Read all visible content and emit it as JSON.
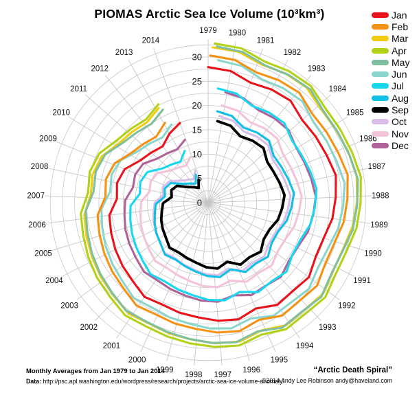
{
  "header": {
    "title": "PIOMAS Arctic Sea Ice Volume (10³km³)"
  },
  "footer": {
    "left_line1": "Monthly Averages from Jan 1979 to Jan 2014",
    "data_label": "Data:",
    "data_url": "http://psc.apl.washington.edu/wordpress/research/projects/arctic-sea-ice-volume-anomaly/",
    "right_title": "“Arctic Death Spiral”",
    "right_copyright": "©2014 Andy Lee Robinson andy@haveland.com"
  },
  "chart_data": {
    "type": "line",
    "polar": true,
    "title": "PIOMAS Arctic Sea Ice Volume (10³km³)",
    "units": "10³km³",
    "start_year": 1979,
    "end_year": 2014,
    "full_circle_years": 37,
    "clockwise": true,
    "year_labels": [
      1979,
      1980,
      1981,
      1982,
      1983,
      1984,
      1985,
      1986,
      1987,
      1988,
      1989,
      1990,
      1991,
      1992,
      1993,
      1994,
      1995,
      1996,
      1997,
      1998,
      1999,
      2000,
      2001,
      2002,
      2003,
      2004,
      2005,
      2006,
      2007,
      2008,
      2009,
      2010,
      2011,
      2012,
      2013,
      2014
    ],
    "radial_ticks": [
      0,
      5,
      10,
      15,
      20,
      25,
      30
    ],
    "ring_step": 2.5,
    "rmax": 32.5,
    "grid_color": "#c6c6c6",
    "legend_position": "right",
    "series": [
      {
        "name": "Jan",
        "color": "#e8131b",
        "width": 3.1,
        "values": [
          27.9,
          27.5,
          26.2,
          26.7,
          27.0,
          25.8,
          26.0,
          26.3,
          26.9,
          26.3,
          25.8,
          24.9,
          24.8,
          25.8,
          25.2,
          25.4,
          23.9,
          24.8,
          24.4,
          23.7,
          23.4,
          23.0,
          23.4,
          22.4,
          21.9,
          21.4,
          20.9,
          20.5,
          18.8,
          19.2,
          18.5,
          16.5,
          15.6,
          14.9,
          16.3,
          17.4
        ]
      },
      {
        "name": "Feb",
        "color": "#f59115",
        "width": 3.1,
        "values": [
          30.3,
          29.9,
          28.6,
          29.1,
          29.4,
          28.2,
          28.4,
          28.7,
          29.3,
          28.7,
          28.2,
          27.3,
          27.2,
          28.2,
          27.6,
          27.8,
          26.3,
          27.2,
          26.8,
          26.1,
          25.8,
          25.4,
          25.8,
          24.8,
          24.3,
          23.8,
          23.3,
          22.9,
          21.2,
          21.6,
          20.9,
          18.9,
          18.0,
          17.3,
          18.7
        ]
      },
      {
        "name": "Mar",
        "color": "#f2cb13",
        "width": 3.1,
        "values": [
          32.0,
          31.7,
          30.5,
          31.0,
          31.2,
          30.2,
          30.3,
          30.7,
          31.1,
          30.7,
          30.2,
          29.4,
          29.3,
          30.2,
          29.7,
          29.9,
          28.5,
          29.3,
          29.0,
          28.4,
          28.1,
          27.7,
          28.1,
          27.3,
          26.9,
          26.4,
          26.0,
          25.6,
          24.2,
          24.5,
          23.9,
          22.1,
          21.4,
          20.8,
          22.0
        ]
      },
      {
        "name": "Apr",
        "color": "#b2d118",
        "width": 3.1,
        "values": [
          32.8,
          32.5,
          31.3,
          31.8,
          32.0,
          31.0,
          31.1,
          31.4,
          31.9,
          31.4,
          31.0,
          30.2,
          30.1,
          31.0,
          30.4,
          30.6,
          29.3,
          30.1,
          29.7,
          29.2,
          28.8,
          28.5,
          28.8,
          28.0,
          27.6,
          27.1,
          26.6,
          26.3,
          24.8,
          25.2,
          24.6,
          22.8,
          22.0,
          21.4,
          22.7
        ]
      },
      {
        "name": "May",
        "color": "#7fbf9e",
        "width": 3.1,
        "values": [
          32.2,
          31.8,
          30.6,
          31.1,
          31.4,
          30.3,
          30.4,
          30.7,
          31.2,
          30.7,
          30.3,
          29.4,
          29.3,
          30.3,
          29.6,
          29.9,
          28.4,
          29.3,
          28.9,
          28.3,
          27.9,
          27.6,
          27.9,
          27.1,
          26.6,
          26.1,
          25.6,
          25.3,
          23.7,
          24.0,
          23.4,
          21.5,
          20.6,
          20.0,
          21.3
        ]
      },
      {
        "name": "Jun",
        "color": "#8ad6cd",
        "width": 3.1,
        "values": [
          29.4,
          29.0,
          27.7,
          28.2,
          28.5,
          27.3,
          27.5,
          27.8,
          28.4,
          27.8,
          27.3,
          26.4,
          26.3,
          27.3,
          26.7,
          26.9,
          25.4,
          26.3,
          25.9,
          25.2,
          24.9,
          24.5,
          24.9,
          23.9,
          23.4,
          22.9,
          22.4,
          22.0,
          20.3,
          20.7,
          20.0,
          18.0,
          17.1,
          16.4,
          17.8
        ]
      },
      {
        "name": "Jul",
        "color": "#19d7ef",
        "width": 3.1,
        "values": [
          23.6,
          23.2,
          21.9,
          22.4,
          22.7,
          21.5,
          21.6,
          22.0,
          22.5,
          22.0,
          21.5,
          20.5,
          20.4,
          21.5,
          20.8,
          21.1,
          19.5,
          20.4,
          20.0,
          19.3,
          18.9,
          18.5,
          18.9,
          18.0,
          17.4,
          16.9,
          16.4,
          16.0,
          14.2,
          14.6,
          14.0,
          11.8,
          10.9,
          10.2,
          11.7
        ]
      },
      {
        "name": "Aug",
        "color": "#13bfe4",
        "width": 3.1,
        "values": [
          18.9,
          18.5,
          17.1,
          17.6,
          17.9,
          16.6,
          16.8,
          17.2,
          17.8,
          17.2,
          16.6,
          15.6,
          15.5,
          16.6,
          15.9,
          16.2,
          14.5,
          15.5,
          15.1,
          14.4,
          13.9,
          13.5,
          13.9,
          12.9,
          12.4,
          11.8,
          11.2,
          10.8,
          9.0,
          9.4,
          8.7,
          6.4,
          5.4,
          4.7,
          6.3
        ]
      },
      {
        "name": "Sep",
        "color": "#000000",
        "width": 3.8,
        "values": [
          16.9,
          16.5,
          15.2,
          15.7,
          16.0,
          14.8,
          14.9,
          15.3,
          15.8,
          15.3,
          14.8,
          13.8,
          13.7,
          14.8,
          14.1,
          14.4,
          12.8,
          13.7,
          13.3,
          12.6,
          12.2,
          11.9,
          12.2,
          11.3,
          10.8,
          10.3,
          9.7,
          9.3,
          7.6,
          8.0,
          7.3,
          5.2,
          4.3,
          3.6,
          5.1
        ]
      },
      {
        "name": "Oct",
        "color": "#d9bfe8",
        "width": 3.1,
        "values": [
          18.0,
          17.6,
          16.4,
          16.9,
          17.1,
          16.0,
          16.2,
          16.5,
          17.0,
          16.5,
          16.0,
          15.2,
          15.1,
          16.0,
          15.4,
          15.7,
          14.2,
          15.1,
          14.7,
          14.1,
          13.7,
          13.3,
          13.7,
          12.8,
          12.3,
          11.9,
          11.4,
          11.0,
          9.4,
          9.8,
          9.1,
          7.2,
          6.3,
          5.7,
          7.1
        ]
      },
      {
        "name": "Nov",
        "color": "#f4c3da",
        "width": 3.1,
        "values": [
          20.2,
          19.9,
          18.7,
          19.2,
          19.4,
          18.4,
          18.5,
          18.8,
          19.3,
          18.8,
          18.4,
          17.6,
          17.5,
          18.4,
          17.8,
          18.1,
          16.7,
          17.5,
          17.2,
          16.6,
          16.2,
          15.9,
          16.2,
          15.5,
          15.0,
          14.6,
          14.1,
          13.8,
          12.3,
          12.6,
          12.1,
          10.3,
          9.5,
          8.9,
          10.1
        ]
      },
      {
        "name": "Dec",
        "color": "#b06398",
        "width": 3.1,
        "values": [
          23.0,
          22.7,
          21.7,
          22.1,
          22.3,
          21.4,
          21.5,
          21.8,
          22.2,
          21.8,
          21.4,
          20.6,
          20.5,
          21.4,
          20.8,
          21.0,
          19.8,
          20.5,
          20.2,
          19.7,
          19.4,
          19.1,
          19.4,
          18.7,
          18.3,
          17.9,
          17.4,
          17.1,
          15.8,
          16.1,
          15.6,
          13.9,
          13.2,
          12.7,
          13.8
        ]
      }
    ]
  }
}
